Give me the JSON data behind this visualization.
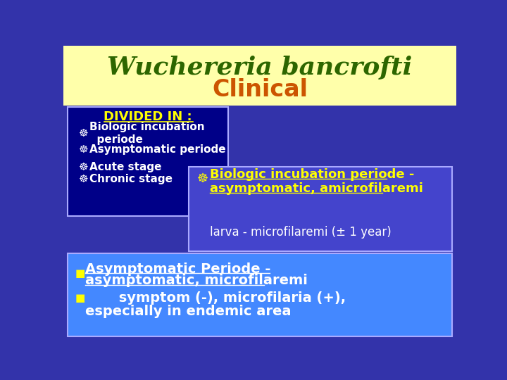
{
  "title_line1": "Wuchereria bancrofti",
  "title_line2": "Clinical",
  "title_bg": "#ffffaa",
  "title_color1": "#2d6600",
  "title_color2": "#cc5500",
  "bg_color": "#3333aa",
  "left_box_bg": "#000088",
  "left_box_border": "#aaaaff",
  "left_box_title": "DIVIDED IN :",
  "left_box_items": [
    "Biologic incubation\n  periode",
    "Asymptomatic periode",
    "Acute stage",
    "Chronic stage"
  ],
  "mid_box_bg": "#4444cc",
  "mid_box_border": "#aaaaff",
  "mid_heading1": "Biologic incubation periode -",
  "mid_heading2": "asymptomatic, amicrofilaremi",
  "mid_subtext": "larva - microfilaremi (± 1 year)",
  "bot_box_bg": "#4488ff",
  "bot_box_border": "#aaaaff",
  "bot_bullet1a": "Asymptomatic Periode -",
  "bot_bullet1b": "asymptomatic, microfilaremi",
  "bot_bullet2a": "     symptom (-), microfilaria (+),",
  "bot_bullet2b": "especially in endemic area",
  "symbol": "☸",
  "bullet": "■"
}
